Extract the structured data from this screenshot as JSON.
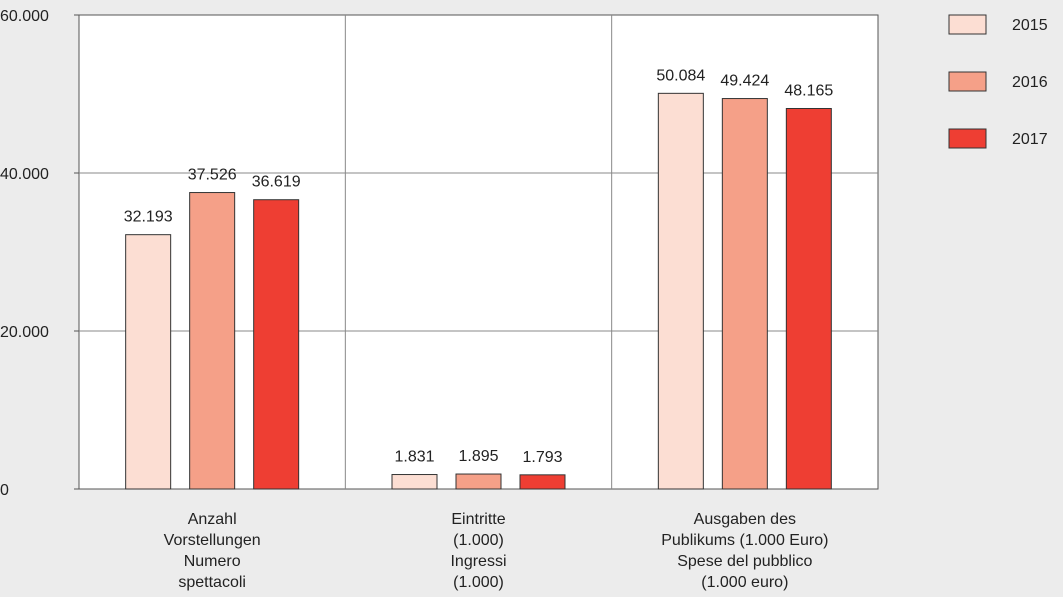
{
  "chart_data": {
    "type": "bar",
    "categories": [
      [
        "Anzahl",
        "Vorstellungen",
        "Numero",
        "spettacoli"
      ],
      [
        "Eintritte",
        "(1.000)",
        "Ingressi",
        "(1.000)"
      ],
      [
        "Ausgaben des",
        "Publikums (1.000 Euro)",
        "Spese del pubblico",
        "(1.000 euro)"
      ]
    ],
    "series": [
      {
        "name": "2015",
        "color": "#fcded3",
        "values": [
          32193,
          1831,
          50084
        ],
        "labels": [
          "32.193",
          "1.831",
          "50.084"
        ]
      },
      {
        "name": "2016",
        "color": "#f5a088",
        "values": [
          37526,
          1895,
          49424
        ],
        "labels": [
          "37.526",
          "1.895",
          "49.424"
        ]
      },
      {
        "name": "2017",
        "color": "#ee3e33",
        "values": [
          36619,
          1793,
          48165
        ],
        "labels": [
          "36.619",
          "1.793",
          "48.165"
        ]
      }
    ],
    "ylim": [
      0,
      60000
    ],
    "yticks": [
      0,
      20000,
      40000,
      60000
    ],
    "ytick_labels": [
      "0",
      "20.000",
      "40.000",
      "60.000"
    ],
    "grid": true,
    "legend_position": "top-right",
    "title": "",
    "xlabel": "",
    "ylabel": ""
  }
}
